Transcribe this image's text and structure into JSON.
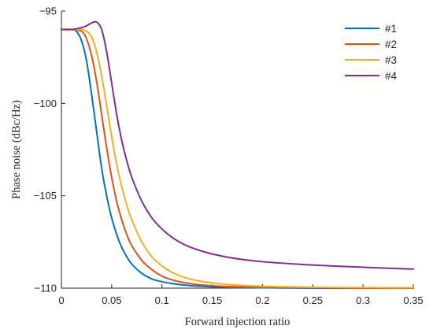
{
  "chart_data": {
    "type": "line",
    "title": "",
    "xlabel": "Forward injection ratio",
    "ylabel": "Phase noise (dBc/Hz)",
    "xlim": [
      0,
      0.35
    ],
    "ylim": [
      -110,
      -95
    ],
    "xticks": [
      0,
      0.05,
      0.1,
      0.15,
      0.2,
      0.25,
      0.3,
      0.35
    ],
    "xtick_labels": [
      "0",
      "0.05",
      "0.1",
      "0.15",
      "0.2",
      "0.25",
      "0.3",
      "0.35"
    ],
    "yticks": [
      -110,
      -105,
      -100,
      -95
    ],
    "ytick_labels": [
      "−110",
      "−105",
      "−100",
      "−95"
    ],
    "grid": false,
    "legend_position": "top-right",
    "series": [
      {
        "name": "#1",
        "color": "#0072BD",
        "x": [
          0,
          0.01,
          0.015,
          0.02,
          0.025,
          0.03,
          0.035,
          0.04,
          0.045,
          0.05,
          0.055,
          0.06,
          0.065,
          0.07,
          0.08,
          0.09,
          0.1,
          0.11,
          0.12,
          0.13,
          0.14,
          0.15,
          0.17,
          0.2,
          0.25,
          0.3,
          0.35
        ],
        "y": [
          -96.0,
          -96.0,
          -96.1,
          -96.6,
          -97.7,
          -99.5,
          -101.5,
          -103.5,
          -105.0,
          -106.2,
          -107.1,
          -107.8,
          -108.3,
          -108.7,
          -109.2,
          -109.5,
          -109.65,
          -109.75,
          -109.82,
          -109.87,
          -109.9,
          -109.93,
          -109.96,
          -109.98,
          -110.0,
          -110.0,
          -110.0
        ]
      },
      {
        "name": "#2",
        "color": "#D95319",
        "x": [
          0,
          0.01,
          0.02,
          0.025,
          0.03,
          0.035,
          0.04,
          0.045,
          0.05,
          0.055,
          0.06,
          0.065,
          0.07,
          0.08,
          0.09,
          0.1,
          0.11,
          0.12,
          0.13,
          0.14,
          0.15,
          0.17,
          0.2,
          0.25,
          0.3,
          0.35
        ],
        "y": [
          -96.0,
          -96.0,
          -96.1,
          -96.5,
          -97.4,
          -98.8,
          -100.6,
          -102.4,
          -104.0,
          -105.3,
          -106.3,
          -107.1,
          -107.7,
          -108.5,
          -109.0,
          -109.35,
          -109.55,
          -109.68,
          -109.77,
          -109.83,
          -109.87,
          -109.92,
          -109.96,
          -109.98,
          -110.0,
          -110.0
        ]
      },
      {
        "name": "#3",
        "color": "#EDB120",
        "x": [
          0,
          0.01,
          0.02,
          0.025,
          0.03,
          0.035,
          0.04,
          0.045,
          0.05,
          0.055,
          0.06,
          0.065,
          0.07,
          0.08,
          0.09,
          0.1,
          0.11,
          0.12,
          0.13,
          0.14,
          0.15,
          0.17,
          0.2,
          0.25,
          0.3,
          0.35
        ],
        "y": [
          -96.0,
          -96.0,
          -96.0,
          -96.1,
          -96.4,
          -97.2,
          -98.5,
          -100.1,
          -101.8,
          -103.3,
          -104.5,
          -105.5,
          -106.3,
          -107.5,
          -108.3,
          -108.8,
          -109.15,
          -109.38,
          -109.53,
          -109.64,
          -109.72,
          -109.82,
          -109.9,
          -109.95,
          -109.97,
          -109.98
        ]
      },
      {
        "name": "#4",
        "color": "#7E2F8E",
        "x": [
          0,
          0.01,
          0.02,
          0.025,
          0.03,
          0.035,
          0.04,
          0.045,
          0.05,
          0.055,
          0.06,
          0.065,
          0.07,
          0.08,
          0.09,
          0.1,
          0.11,
          0.12,
          0.13,
          0.14,
          0.15,
          0.17,
          0.2,
          0.25,
          0.3,
          0.35
        ],
        "y": [
          -96.0,
          -96.0,
          -95.9,
          -95.8,
          -95.65,
          -95.6,
          -96.0,
          -97.2,
          -98.9,
          -100.6,
          -102.0,
          -103.1,
          -104.0,
          -105.3,
          -106.2,
          -106.8,
          -107.25,
          -107.58,
          -107.82,
          -108.0,
          -108.15,
          -108.37,
          -108.57,
          -108.75,
          -108.87,
          -108.97
        ]
      }
    ]
  }
}
